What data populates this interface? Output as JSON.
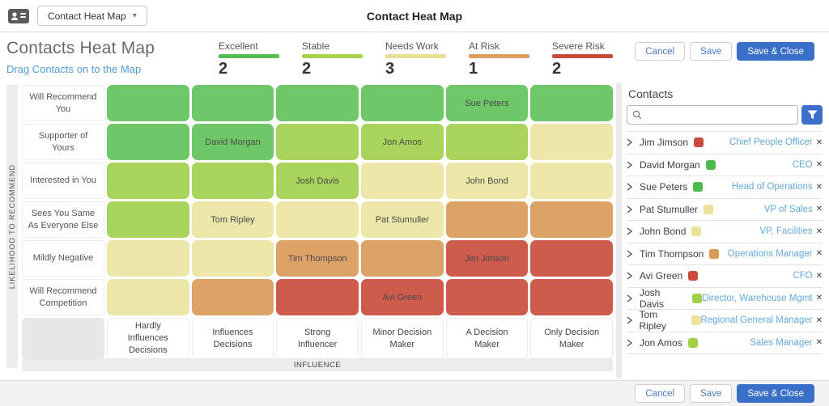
{
  "topbar": {
    "selector_label": "Contact Heat Map",
    "title": "Contact Heat Map"
  },
  "header": {
    "title": "Contacts Heat Map",
    "subtitle": "Drag Contacts on to the Map",
    "legend": [
      {
        "label": "Excellent",
        "count": "2",
        "color": "#55bb52"
      },
      {
        "label": "Stable",
        "count": "2",
        "color": "#a6d14b"
      },
      {
        "label": "Needs Work",
        "count": "3",
        "color": "#e8e193"
      },
      {
        "label": "At Risk",
        "count": "1",
        "color": "#dc9d5e"
      },
      {
        "label": "Severe Risk",
        "count": "2",
        "color": "#c84a3b"
      }
    ],
    "actions": {
      "cancel": "Cancel",
      "save": "Save",
      "save_close": "Save & Close"
    }
  },
  "heatmap": {
    "y_axis": "LIKELIHOOD TO RECOMMEND",
    "x_axis": "INFLUENCE",
    "palette": {
      "green": "#6fc868",
      "lightgreen": "#a9d45c",
      "paleyellow": "#ece7a9",
      "orange": "#dda266",
      "red": "#cd5c4c"
    },
    "columns": [
      "Hardly Influences Decisions",
      "Influences Decisions",
      "Strong Influencer",
      "Minor Decision Maker",
      "A Decision Maker",
      "Only Decision Maker"
    ],
    "grid": [
      {
        "row": "Will Recommend You",
        "cells": [
          {
            "color": "green",
            "label": ""
          },
          {
            "color": "green",
            "label": ""
          },
          {
            "color": "green",
            "label": ""
          },
          {
            "color": "green",
            "label": ""
          },
          {
            "color": "green",
            "label": "Sue Peters"
          },
          {
            "color": "green",
            "label": ""
          }
        ]
      },
      {
        "row": "Supporter of Yours",
        "cells": [
          {
            "color": "green",
            "label": ""
          },
          {
            "color": "green",
            "label": "David Morgan"
          },
          {
            "color": "lightgreen",
            "label": ""
          },
          {
            "color": "lightgreen",
            "label": "Jon Amos"
          },
          {
            "color": "lightgreen",
            "label": ""
          },
          {
            "color": "paleyellow",
            "label": ""
          }
        ]
      },
      {
        "row": "Interested in You",
        "cells": [
          {
            "color": "lightgreen",
            "label": ""
          },
          {
            "color": "lightgreen",
            "label": ""
          },
          {
            "color": "lightgreen",
            "label": "Josh Davis"
          },
          {
            "color": "paleyellow",
            "label": ""
          },
          {
            "color": "paleyellow",
            "label": "John Bond"
          },
          {
            "color": "paleyellow",
            "label": ""
          }
        ]
      },
      {
        "row": "Sees You Same As Everyone Else",
        "cells": [
          {
            "color": "lightgreen",
            "label": ""
          },
          {
            "color": "paleyellow",
            "label": "Tom Ripley"
          },
          {
            "color": "paleyellow",
            "label": ""
          },
          {
            "color": "paleyellow",
            "label": "Pat Stumuller"
          },
          {
            "color": "orange",
            "label": ""
          },
          {
            "color": "orange",
            "label": ""
          }
        ]
      },
      {
        "row": "Mildly Negative",
        "cells": [
          {
            "color": "paleyellow",
            "label": ""
          },
          {
            "color": "paleyellow",
            "label": ""
          },
          {
            "color": "orange",
            "label": "Tim Thompson"
          },
          {
            "color": "orange",
            "label": ""
          },
          {
            "color": "red",
            "label": "Jim Jimson"
          },
          {
            "color": "red",
            "label": ""
          }
        ]
      },
      {
        "row": "Will Recommend Competition",
        "cells": [
          {
            "color": "paleyellow",
            "label": ""
          },
          {
            "color": "orange",
            "label": ""
          },
          {
            "color": "red",
            "label": ""
          },
          {
            "color": "red",
            "label": "Avi Green"
          },
          {
            "color": "red",
            "label": ""
          },
          {
            "color": "red",
            "label": ""
          }
        ]
      }
    ]
  },
  "sidebar": {
    "title": "Contacts",
    "search_value": "",
    "contacts": [
      {
        "name": "Jim Jimson",
        "status": "red",
        "title": "Chief People Officer"
      },
      {
        "name": "David Morgan",
        "status": "green",
        "title": "CEO"
      },
      {
        "name": "Sue Peters",
        "status": "green",
        "title": "Head of Operations"
      },
      {
        "name": "Pat Stumuller",
        "status": "paleyellow",
        "title": "VP of Sales"
      },
      {
        "name": "John Bond",
        "status": "paleyellow",
        "title": "VP, Facilities"
      },
      {
        "name": "Tim Thompson",
        "status": "orange",
        "title": "Operations Manager"
      },
      {
        "name": "Avi Green",
        "status": "red",
        "title": "CFO"
      },
      {
        "name": "Josh Davis",
        "status": "lightgreen",
        "title": "Director, Warehouse Mgmt"
      },
      {
        "name": "Tom Ripley",
        "status": "paleyellow",
        "title": "Regional General Manager"
      },
      {
        "name": "Jon Amos",
        "status": "lightgreen",
        "title": "Sales Manager"
      }
    ],
    "swatch_palette": {
      "green": "#4cba4a",
      "lightgreen": "#a2cf45",
      "paleyellow": "#e9e298",
      "orange": "#d89a55",
      "red": "#c94b3c"
    }
  },
  "footer": {
    "cancel": "Cancel",
    "save": "Save",
    "save_close": "Save & Close"
  }
}
